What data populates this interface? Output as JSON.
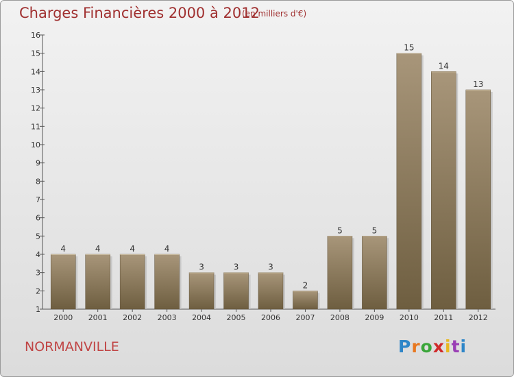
{
  "title": "Charges Financières 2000 à 2012",
  "subtitle": "(en milliers d'€)",
  "commune": "NORMANVILLE",
  "logo": {
    "letters": [
      "P",
      "r",
      "o",
      "x",
      "i",
      "t",
      "i"
    ],
    "colors": [
      "#2e86c8",
      "#e87820",
      "#3aa63a",
      "#d02a2a",
      "#e8b820",
      "#9a3fb5",
      "#2e86c8"
    ]
  },
  "chart_data": {
    "type": "bar",
    "categories": [
      "2000",
      "2001",
      "2002",
      "2003",
      "2004",
      "2005",
      "2006",
      "2007",
      "2008",
      "2009",
      "2010",
      "2011",
      "2012"
    ],
    "values": [
      4,
      4,
      4,
      4,
      3,
      3,
      3,
      2,
      5,
      5,
      15,
      14,
      13
    ],
    "data_labels": [
      "4",
      "4",
      "4",
      "4",
      "3",
      "3",
      "3",
      "2",
      "5",
      "5",
      "15",
      "14",
      "13"
    ],
    "yticks": [
      "1",
      "2",
      "3",
      "4",
      "5",
      "6",
      "7",
      "8",
      "9",
      "10",
      "11",
      "12",
      "13",
      "14",
      "15",
      "16"
    ],
    "ylim": [
      1,
      16
    ],
    "grid": false,
    "bar_color": "#8c7a5c"
  }
}
